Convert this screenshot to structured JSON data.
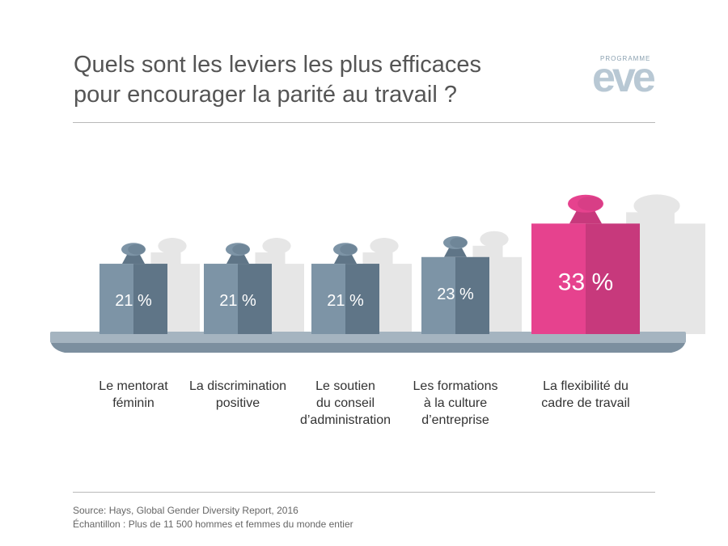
{
  "title": {
    "line1": "Quels sont les leviers les plus efficaces",
    "line2": "pour encourager la parité au travail ?"
  },
  "logo": {
    "small_text": "PROGRAMME",
    "big_text": "eve"
  },
  "colors": {
    "weight_dark": "#5f7587",
    "weight_light": "#7d94a6",
    "highlight_dark": "#c7397c",
    "highlight_light": "#e6428e",
    "shadow": "#e6e6e6",
    "tray_top": "#a5b4c0",
    "tray_bottom": "#7c8f9f",
    "label": "#333333"
  },
  "chart_data": {
    "type": "bar",
    "title": "Quels sont les leviers les plus efficaces pour encourager la parité au travail ?",
    "unit": "%",
    "categories": [
      "Le mentorat féminin",
      "La discrimination positive",
      "Le soutien du conseil d'administration",
      "Les formations à la culture d'entreprise",
      "La flexibilité du cadre de travail"
    ],
    "values": [
      21,
      21,
      21,
      23,
      33
    ],
    "value_labels": [
      "21 %",
      "21 %",
      "21 %",
      "23 %",
      "33 %"
    ],
    "label_lines": [
      [
        "Le mentorat",
        "féminin"
      ],
      [
        "La discrimination",
        "positive"
      ],
      [
        "Le soutien",
        "du conseil",
        "d’administration"
      ],
      [
        "Les formations",
        "à la culture",
        "d’entreprise"
      ],
      [
        "La flexibilité du",
        "cadre de travail"
      ]
    ],
    "highlight_index": 4
  },
  "footer": {
    "source": "Source: Hays, Global Gender Diversity Report, 2016",
    "sample": "Échantillon : Plus de 11 500 hommes et femmes du monde entier"
  }
}
